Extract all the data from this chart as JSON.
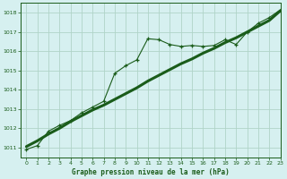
{
  "title": "Graphe pression niveau de la mer (hPa)",
  "bg_color": "#d6f0f0",
  "grid_color": "#b0d4c8",
  "line_color": "#1a5c1a",
  "xlim": [
    -0.5,
    23
  ],
  "ylim": [
    1010.5,
    1018.5
  ],
  "xticks": [
    0,
    1,
    2,
    3,
    4,
    5,
    6,
    7,
    8,
    9,
    10,
    11,
    12,
    13,
    14,
    15,
    16,
    17,
    18,
    19,
    20,
    21,
    22,
    23
  ],
  "yticks": [
    1011,
    1012,
    1013,
    1014,
    1015,
    1016,
    1017,
    1018
  ],
  "thin_x": [
    0,
    1,
    2,
    3,
    4,
    5,
    6,
    7,
    8,
    9,
    10,
    11,
    12,
    13,
    14,
    15,
    16,
    17,
    18,
    19,
    20,
    21,
    22,
    23
  ],
  "thin_y": [
    1010.9,
    1011.1,
    1011.85,
    1012.15,
    1012.4,
    1012.8,
    1013.1,
    1013.4,
    1014.85,
    1015.25,
    1015.55,
    1016.65,
    1016.6,
    1016.35,
    1016.25,
    1016.3,
    1016.25,
    1016.3,
    1016.6,
    1016.35,
    1017.0,
    1017.45,
    1017.75,
    1018.15
  ],
  "thick_x": [
    0,
    1,
    2,
    3,
    4,
    5,
    6,
    7,
    8,
    9,
    10,
    11,
    12,
    13,
    14,
    15,
    16,
    17,
    18,
    19,
    20,
    21,
    22,
    23
  ],
  "thick_y": [
    1011.05,
    1011.35,
    1011.7,
    1012.0,
    1012.35,
    1012.65,
    1012.95,
    1013.2,
    1013.5,
    1013.8,
    1014.1,
    1014.45,
    1014.75,
    1015.05,
    1015.35,
    1015.6,
    1015.9,
    1016.15,
    1016.45,
    1016.7,
    1017.0,
    1017.3,
    1017.6,
    1018.1
  ]
}
